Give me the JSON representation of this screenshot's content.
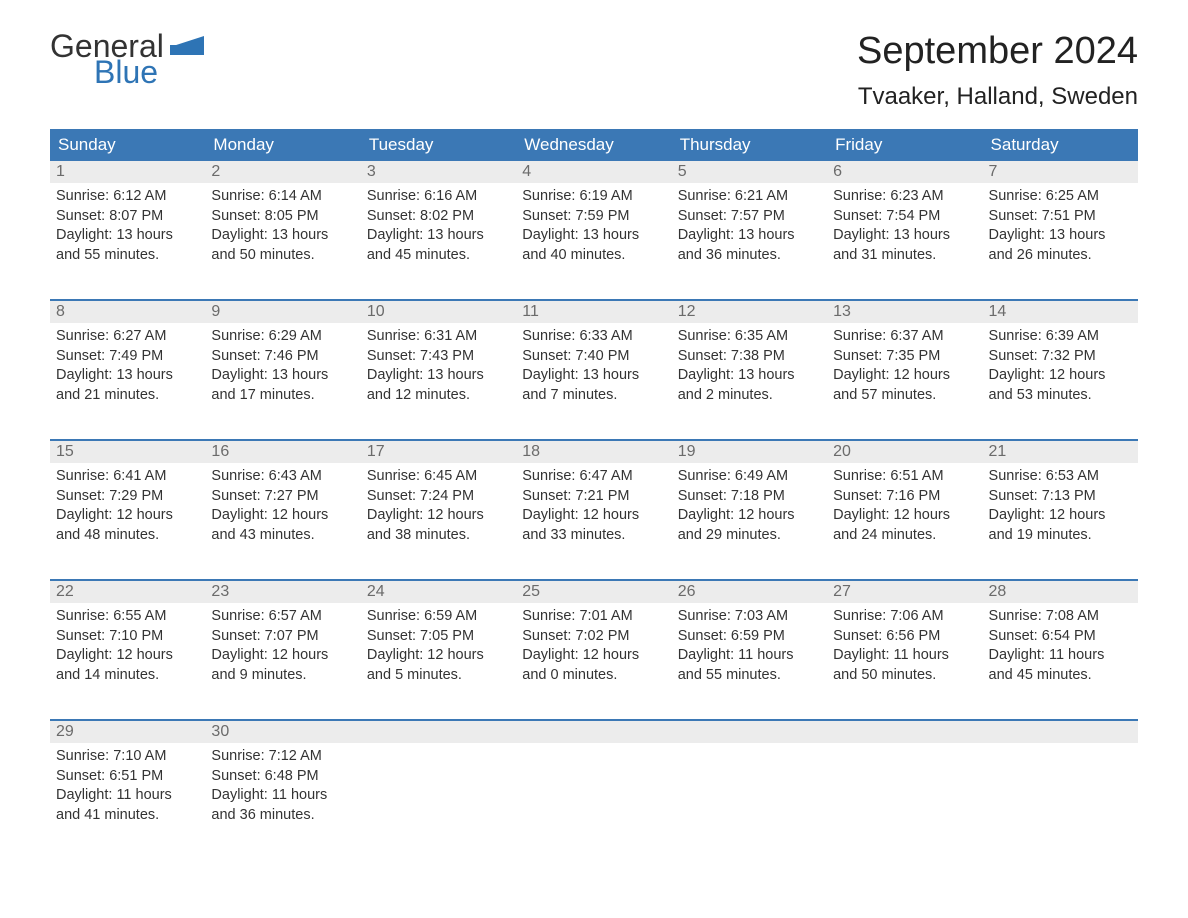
{
  "brand": {
    "logo_text_1": "General",
    "logo_text_2": "Blue",
    "logo_color_general": "#333333",
    "logo_color_blue": "#2e74b5",
    "flag_color": "#2e74b5"
  },
  "header": {
    "month_title": "September 2024",
    "location": "Tvaaker, Halland, Sweden"
  },
  "colors": {
    "header_bg": "#3b78b5",
    "header_text": "#ffffff",
    "day_number_bg": "#ececec",
    "day_number_text": "#6b6b6b",
    "body_text": "#333333",
    "row_divider": "#3b78b5",
    "background": "#ffffff"
  },
  "typography": {
    "month_title_fontsize": 38,
    "location_fontsize": 24,
    "weekday_fontsize": 17,
    "daynum_fontsize": 16,
    "body_fontsize": 14.5,
    "logo_fontsize": 32
  },
  "weekdays": [
    "Sunday",
    "Monday",
    "Tuesday",
    "Wednesday",
    "Thursday",
    "Friday",
    "Saturday"
  ],
  "weeks": [
    [
      {
        "day": "1",
        "sunrise": "Sunrise: 6:12 AM",
        "sunset": "Sunset: 8:07 PM",
        "daylight1": "Daylight: 13 hours",
        "daylight2": "and 55 minutes."
      },
      {
        "day": "2",
        "sunrise": "Sunrise: 6:14 AM",
        "sunset": "Sunset: 8:05 PM",
        "daylight1": "Daylight: 13 hours",
        "daylight2": "and 50 minutes."
      },
      {
        "day": "3",
        "sunrise": "Sunrise: 6:16 AM",
        "sunset": "Sunset: 8:02 PM",
        "daylight1": "Daylight: 13 hours",
        "daylight2": "and 45 minutes."
      },
      {
        "day": "4",
        "sunrise": "Sunrise: 6:19 AM",
        "sunset": "Sunset: 7:59 PM",
        "daylight1": "Daylight: 13 hours",
        "daylight2": "and 40 minutes."
      },
      {
        "day": "5",
        "sunrise": "Sunrise: 6:21 AM",
        "sunset": "Sunset: 7:57 PM",
        "daylight1": "Daylight: 13 hours",
        "daylight2": "and 36 minutes."
      },
      {
        "day": "6",
        "sunrise": "Sunrise: 6:23 AM",
        "sunset": "Sunset: 7:54 PM",
        "daylight1": "Daylight: 13 hours",
        "daylight2": "and 31 minutes."
      },
      {
        "day": "7",
        "sunrise": "Sunrise: 6:25 AM",
        "sunset": "Sunset: 7:51 PM",
        "daylight1": "Daylight: 13 hours",
        "daylight2": "and 26 minutes."
      }
    ],
    [
      {
        "day": "8",
        "sunrise": "Sunrise: 6:27 AM",
        "sunset": "Sunset: 7:49 PM",
        "daylight1": "Daylight: 13 hours",
        "daylight2": "and 21 minutes."
      },
      {
        "day": "9",
        "sunrise": "Sunrise: 6:29 AM",
        "sunset": "Sunset: 7:46 PM",
        "daylight1": "Daylight: 13 hours",
        "daylight2": "and 17 minutes."
      },
      {
        "day": "10",
        "sunrise": "Sunrise: 6:31 AM",
        "sunset": "Sunset: 7:43 PM",
        "daylight1": "Daylight: 13 hours",
        "daylight2": "and 12 minutes."
      },
      {
        "day": "11",
        "sunrise": "Sunrise: 6:33 AM",
        "sunset": "Sunset: 7:40 PM",
        "daylight1": "Daylight: 13 hours",
        "daylight2": "and 7 minutes."
      },
      {
        "day": "12",
        "sunrise": "Sunrise: 6:35 AM",
        "sunset": "Sunset: 7:38 PM",
        "daylight1": "Daylight: 13 hours",
        "daylight2": "and 2 minutes."
      },
      {
        "day": "13",
        "sunrise": "Sunrise: 6:37 AM",
        "sunset": "Sunset: 7:35 PM",
        "daylight1": "Daylight: 12 hours",
        "daylight2": "and 57 minutes."
      },
      {
        "day": "14",
        "sunrise": "Sunrise: 6:39 AM",
        "sunset": "Sunset: 7:32 PM",
        "daylight1": "Daylight: 12 hours",
        "daylight2": "and 53 minutes."
      }
    ],
    [
      {
        "day": "15",
        "sunrise": "Sunrise: 6:41 AM",
        "sunset": "Sunset: 7:29 PM",
        "daylight1": "Daylight: 12 hours",
        "daylight2": "and 48 minutes."
      },
      {
        "day": "16",
        "sunrise": "Sunrise: 6:43 AM",
        "sunset": "Sunset: 7:27 PM",
        "daylight1": "Daylight: 12 hours",
        "daylight2": "and 43 minutes."
      },
      {
        "day": "17",
        "sunrise": "Sunrise: 6:45 AM",
        "sunset": "Sunset: 7:24 PM",
        "daylight1": "Daylight: 12 hours",
        "daylight2": "and 38 minutes."
      },
      {
        "day": "18",
        "sunrise": "Sunrise: 6:47 AM",
        "sunset": "Sunset: 7:21 PM",
        "daylight1": "Daylight: 12 hours",
        "daylight2": "and 33 minutes."
      },
      {
        "day": "19",
        "sunrise": "Sunrise: 6:49 AM",
        "sunset": "Sunset: 7:18 PM",
        "daylight1": "Daylight: 12 hours",
        "daylight2": "and 29 minutes."
      },
      {
        "day": "20",
        "sunrise": "Sunrise: 6:51 AM",
        "sunset": "Sunset: 7:16 PM",
        "daylight1": "Daylight: 12 hours",
        "daylight2": "and 24 minutes."
      },
      {
        "day": "21",
        "sunrise": "Sunrise: 6:53 AM",
        "sunset": "Sunset: 7:13 PM",
        "daylight1": "Daylight: 12 hours",
        "daylight2": "and 19 minutes."
      }
    ],
    [
      {
        "day": "22",
        "sunrise": "Sunrise: 6:55 AM",
        "sunset": "Sunset: 7:10 PM",
        "daylight1": "Daylight: 12 hours",
        "daylight2": "and 14 minutes."
      },
      {
        "day": "23",
        "sunrise": "Sunrise: 6:57 AM",
        "sunset": "Sunset: 7:07 PM",
        "daylight1": "Daylight: 12 hours",
        "daylight2": "and 9 minutes."
      },
      {
        "day": "24",
        "sunrise": "Sunrise: 6:59 AM",
        "sunset": "Sunset: 7:05 PM",
        "daylight1": "Daylight: 12 hours",
        "daylight2": "and 5 minutes."
      },
      {
        "day": "25",
        "sunrise": "Sunrise: 7:01 AM",
        "sunset": "Sunset: 7:02 PM",
        "daylight1": "Daylight: 12 hours",
        "daylight2": "and 0 minutes."
      },
      {
        "day": "26",
        "sunrise": "Sunrise: 7:03 AM",
        "sunset": "Sunset: 6:59 PM",
        "daylight1": "Daylight: 11 hours",
        "daylight2": "and 55 minutes."
      },
      {
        "day": "27",
        "sunrise": "Sunrise: 7:06 AM",
        "sunset": "Sunset: 6:56 PM",
        "daylight1": "Daylight: 11 hours",
        "daylight2": "and 50 minutes."
      },
      {
        "day": "28",
        "sunrise": "Sunrise: 7:08 AM",
        "sunset": "Sunset: 6:54 PM",
        "daylight1": "Daylight: 11 hours",
        "daylight2": "and 45 minutes."
      }
    ],
    [
      {
        "day": "29",
        "sunrise": "Sunrise: 7:10 AM",
        "sunset": "Sunset: 6:51 PM",
        "daylight1": "Daylight: 11 hours",
        "daylight2": "and 41 minutes."
      },
      {
        "day": "30",
        "sunrise": "Sunrise: 7:12 AM",
        "sunset": "Sunset: 6:48 PM",
        "daylight1": "Daylight: 11 hours",
        "daylight2": "and 36 minutes."
      },
      {
        "empty": true
      },
      {
        "empty": true
      },
      {
        "empty": true
      },
      {
        "empty": true
      },
      {
        "empty": true
      }
    ]
  ]
}
